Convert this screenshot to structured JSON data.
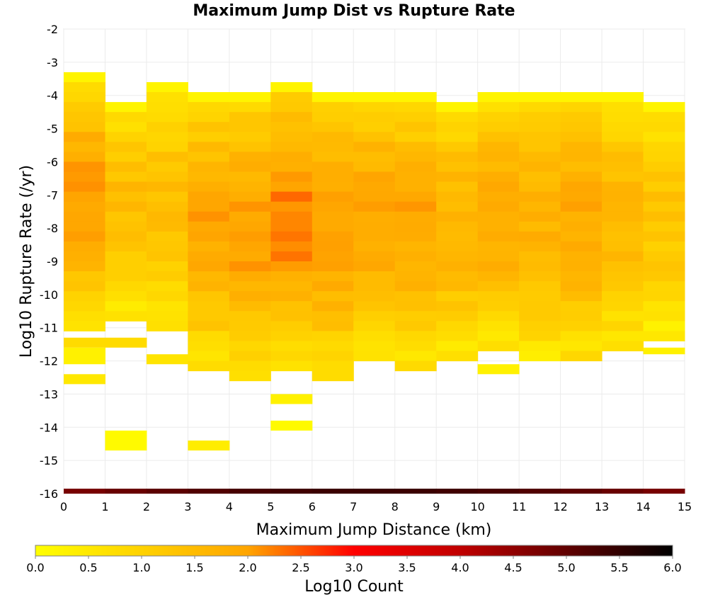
{
  "chart_data": {
    "type": "heatmap",
    "title": "Maximum Jump Dist vs Rupture Rate",
    "xlabel": "Maximum Jump Distance (km)",
    "ylabel": "Log10 Rupture Rate (/yr)",
    "xlim": [
      0,
      15
    ],
    "ylim": [
      -16,
      -2
    ],
    "x_ticks": [
      "0",
      "1",
      "2",
      "3",
      "4",
      "5",
      "6",
      "7",
      "8",
      "9",
      "10",
      "11",
      "12",
      "13",
      "14",
      "15"
    ],
    "y_ticks": [
      "-2",
      "-3",
      "-4",
      "-5",
      "-6",
      "-7",
      "-8",
      "-9",
      "-10",
      "-11",
      "-12",
      "-13",
      "-14",
      "-15",
      "-16"
    ],
    "grid": true,
    "bin_width_x": 1,
    "bin_height_y": 0.3,
    "columns": [
      {
        "x0": 0,
        "y_top": -3.3,
        "y_bottom": -11.0,
        "peak": 2.0,
        "extra": [
          [
            -11.6,
            -11.3,
            0.8
          ],
          [
            -12.1,
            -11.6,
            0.3
          ],
          [
            -12.7,
            -12.4,
            0.5
          ]
        ]
      },
      {
        "x0": 1,
        "y_top": -4.2,
        "y_bottom": -10.7,
        "peak": 1.5,
        "extra": [
          [
            -11.6,
            -11.3,
            0.8
          ],
          [
            -14.7,
            -14.1,
            0.1
          ]
        ]
      },
      {
        "x0": 2,
        "y_top": -3.6,
        "y_bottom": -11.0,
        "peak": 1.4,
        "extra": [
          [
            -12.1,
            -11.8,
            0.6
          ]
        ]
      },
      {
        "x0": 3,
        "y_top": -3.9,
        "y_bottom": -12.4,
        "peak": 1.9,
        "extra": [
          [
            -14.7,
            -14.4,
            0.4
          ]
        ]
      },
      {
        "x0": 4,
        "y_top": -3.9,
        "y_bottom": -12.7,
        "peak": 2.0,
        "extra": []
      },
      {
        "x0": 5,
        "y_top": -3.6,
        "y_bottom": -12.4,
        "peak": 2.2,
        "extra": [
          [
            -13.3,
            -13.0,
            0.3
          ],
          [
            -14.1,
            -13.8,
            0.1
          ]
        ]
      },
      {
        "x0": 6,
        "y_top": -3.9,
        "y_bottom": -12.7,
        "peak": 2.0,
        "extra": []
      },
      {
        "x0": 7,
        "y_top": -3.9,
        "y_bottom": -12.1,
        "peak": 2.0,
        "extra": []
      },
      {
        "x0": 8,
        "y_top": -3.9,
        "y_bottom": -12.4,
        "peak": 1.9,
        "extra": []
      },
      {
        "x0": 9,
        "y_top": -4.2,
        "y_bottom": -12.1,
        "peak": 1.7,
        "extra": []
      },
      {
        "x0": 10,
        "y_top": -3.9,
        "y_bottom": -11.8,
        "peak": 1.9,
        "extra": [
          [
            -12.4,
            -12.1,
            0.3
          ]
        ]
      },
      {
        "x0": 11,
        "y_top": -3.9,
        "y_bottom": -12.1,
        "peak": 1.7,
        "extra": []
      },
      {
        "x0": 12,
        "y_top": -3.9,
        "y_bottom": -12.1,
        "peak": 1.9,
        "extra": []
      },
      {
        "x0": 13,
        "y_top": -3.9,
        "y_bottom": -11.6,
        "peak": 1.6,
        "extra": []
      },
      {
        "x0": 14,
        "y_top": -4.2,
        "y_bottom": -11.3,
        "peak": 1.3,
        "extra": [
          [
            -11.8,
            -11.6,
            0.3
          ]
        ]
      }
    ],
    "bottom_band": {
      "y0": -16.0,
      "y1": -15.85,
      "log10_count_range": [
        4.2,
        5.4
      ]
    },
    "colorbar": {
      "label": "Log10 Count",
      "range": [
        0,
        6
      ],
      "ticks": [
        "0.0",
        "0.5",
        "1.0",
        "1.5",
        "2.0",
        "2.5",
        "3.0",
        "3.5",
        "4.0",
        "4.5",
        "5.0",
        "5.5",
        "6.0"
      ],
      "colors": [
        "#ffff00",
        "#ffa500",
        "#ff0000",
        "#000000"
      ]
    }
  }
}
